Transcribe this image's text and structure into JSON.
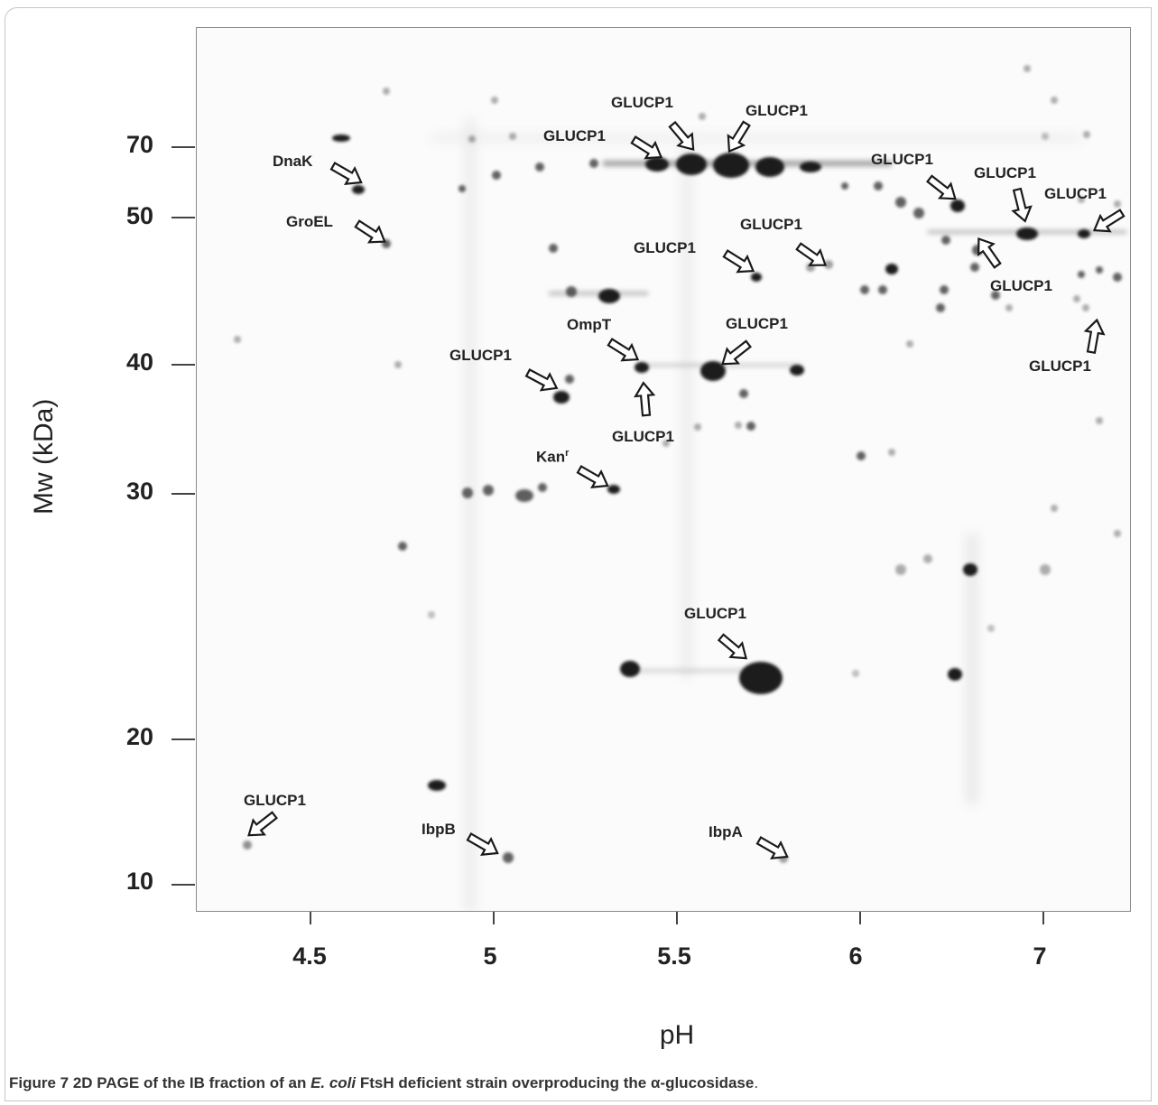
{
  "figure": {
    "caption_lead": "Figure 7",
    "caption_pre": " 2D PAGE of the IB fraction of an ",
    "caption_species": "E. coli",
    "caption_post": " FtsH deficient strain overproducing the α-glucosidase",
    "caption_end": "."
  },
  "axes": {
    "y_title": "Mw (kDa)",
    "x_title": "pH",
    "y_ticks": [
      "70",
      "50",
      "40",
      "30",
      "20",
      "10"
    ],
    "x_ticks": [
      "4.5",
      "5",
      "5.5",
      "6",
      "7"
    ]
  },
  "annotations": {
    "glucp1": "GLUCP1",
    "dnak": "DnaK",
    "groel": "GroEL",
    "ompt": "OmpT",
    "kan": "Kan",
    "kan_sup": "r",
    "ibpb": "IbpB",
    "ibpa": "IbpA"
  },
  "colors": {
    "spot": "#1a1a1a",
    "background": "#fbfbfb"
  }
}
